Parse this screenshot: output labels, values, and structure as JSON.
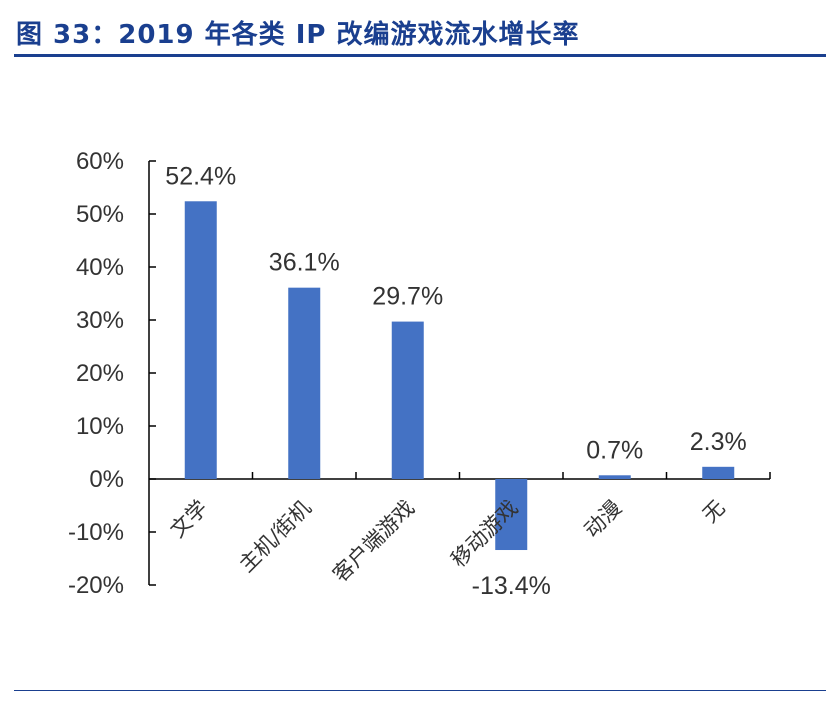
{
  "title": "图 33：2019 年各类 IP 改编游戏流水增长率",
  "colors": {
    "title": "#1a3f8f",
    "bar": "#4472C4",
    "axis": "#000000",
    "text": "#333333"
  },
  "chart_data": {
    "type": "bar",
    "categories": [
      "文学",
      "主机/街机",
      "客户端游戏",
      "移动游戏",
      "动漫",
      "无"
    ],
    "values": [
      52.4,
      36.1,
      29.7,
      -13.4,
      0.7,
      2.3
    ],
    "data_labels": [
      "52.4%",
      "36.1%",
      "29.7%",
      "-13.4%",
      "0.7%",
      "2.3%"
    ],
    "ylim": [
      -20,
      60
    ],
    "yticks": [
      60,
      50,
      40,
      30,
      20,
      10,
      0,
      -10,
      -20
    ],
    "ytick_labels": [
      "60%",
      "50%",
      "40%",
      "30%",
      "20%",
      "10%",
      "0%",
      "-10%",
      "-20%"
    ],
    "grid": false,
    "legend": "none"
  }
}
